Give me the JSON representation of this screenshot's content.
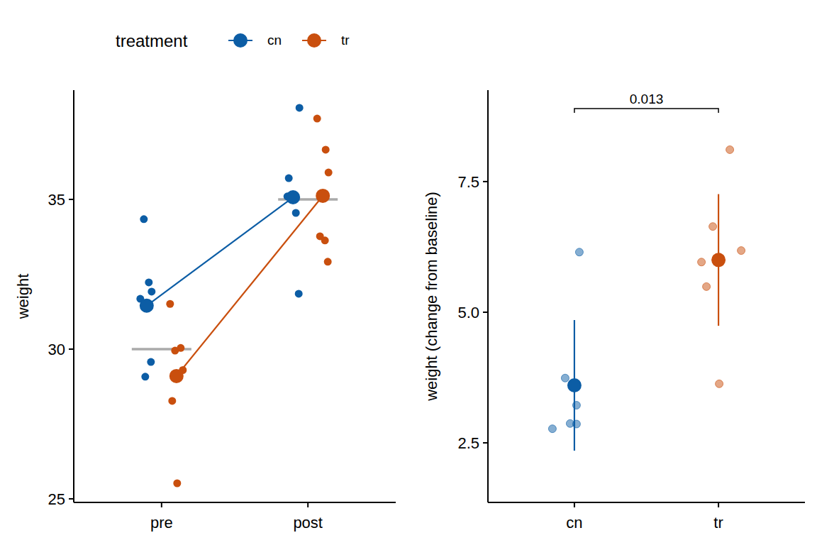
{
  "chart_data": [
    {
      "type": "dot",
      "legend_title": "treatment",
      "legend": "top",
      "ylabel": "weight",
      "categories": [
        "pre",
        "post"
      ],
      "ylim": [
        24.88,
        38.65
      ],
      "yticks": [
        25,
        30,
        35
      ],
      "reference_values": [
        30,
        35
      ],
      "series": [
        {
          "name": "cn",
          "color": "#0C5DA5",
          "points": [
            [
              34.34,
              32.23,
              31.92,
              31.68,
              29.57,
              29.08
            ],
            [
              38.06,
              35.71,
              35.12,
              35.1,
              34.55,
              31.85
            ]
          ],
          "means": [
            31.45,
            35.07
          ]
        },
        {
          "name": "tr",
          "color": "#C94F0E",
          "points": [
            [
              31.51,
              30.04,
              29.95,
              29.3,
              28.27,
              25.52
            ],
            [
              37.7,
              36.66,
              35.9,
              33.77,
              33.63,
              32.92
            ]
          ],
          "means": [
            29.1,
            35.12
          ]
        }
      ]
    },
    {
      "type": "dot",
      "ylabel": "weight (change from baseline)",
      "categories": [
        "cn",
        "tr"
      ],
      "ylim": [
        1.36,
        9.25
      ],
      "yticks": [
        2.5,
        {
          "value": 5,
          "label": "5.0"
        },
        7.5
      ],
      "annotations": [
        {
          "text": "0.013",
          "from": "cn",
          "to": "tr"
        }
      ],
      "series": [
        {
          "color": "#0C5DA5",
          "points": [
            6.15,
            3.74,
            3.22,
            2.87,
            2.86,
            2.77
          ],
          "mean": 3.6,
          "error": 1.25
        },
        {
          "color": "#C94F0E",
          "points": [
            8.11,
            6.64,
            6.18,
            5.96,
            5.49,
            3.63
          ],
          "mean": 6.0,
          "error": 1.26
        }
      ]
    }
  ]
}
